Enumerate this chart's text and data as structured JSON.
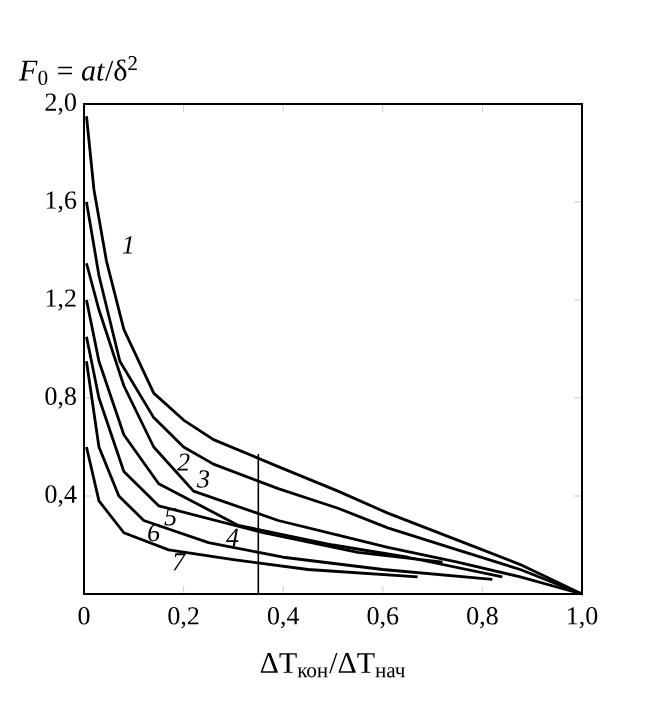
{
  "chart_data": {
    "type": "line",
    "xlabel": "ΔT$_{кон}$/ΔT$_{нач}$",
    "ylabel": "*F*$_{0}$ = *at*/δ$^{2}$",
    "xlim": [
      0,
      1.0
    ],
    "ylim": [
      0,
      2.0
    ],
    "xticks": [
      0,
      {
        "value": 0.2,
        "label": "0,2"
      },
      {
        "value": 0.4,
        "label": "0,4"
      },
      {
        "value": 0.6,
        "label": "0,6"
      },
      {
        "value": 0.8,
        "label": "0,8"
      },
      {
        "value": 1.0,
        "label": "1,0"
      }
    ],
    "yticks": [
      {
        "value": 0.4,
        "label": "0,4"
      },
      {
        "value": 0.8,
        "label": "0,8"
      },
      {
        "value": 1.2,
        "label": "1,2"
      },
      {
        "value": 1.6,
        "label": "1,6"
      },
      {
        "value": 2.0,
        "label": "2,0"
      }
    ],
    "grid": false,
    "marker": "none",
    "line_style": "solid",
    "ref_lines": [
      {
        "axis": "x",
        "value": 0.35,
        "color": "#000000"
      }
    ],
    "series": [
      {
        "name": "1",
        "color": "#000000",
        "x": [
          0.005,
          0.02,
          0.045,
          0.08,
          0.14,
          0.2,
          0.26,
          0.39,
          0.51,
          0.61,
          0.75,
          0.876,
          1.0
        ],
        "values": [
          1.95,
          1.65,
          1.36,
          1.08,
          0.82,
          0.71,
          0.63,
          0.52,
          0.42,
          0.33,
          0.22,
          0.12,
          0
        ]
      },
      {
        "name": "2",
        "color": "#000000",
        "x": [
          0.005,
          0.03,
          0.072,
          0.14,
          0.2,
          0.26,
          0.39,
          0.51,
          0.61,
          0.75,
          0.876,
          1.0
        ],
        "values": [
          1.6,
          1.3,
          0.95,
          0.72,
          0.6,
          0.53,
          0.43,
          0.35,
          0.27,
          0.18,
          0.1,
          0
        ]
      },
      {
        "name": "3",
        "color": "#000000",
        "x": [
          0.005,
          0.03,
          0.08,
          0.14,
          0.22,
          0.39,
          0.51,
          0.61,
          0.75,
          0.876,
          1.0
        ],
        "values": [
          1.35,
          1.16,
          0.85,
          0.6,
          0.42,
          0.3,
          0.24,
          0.19,
          0.13,
          0.07,
          0
        ]
      },
      {
        "name": "4",
        "color": "#000000",
        "x": [
          0.005,
          0.03,
          0.08,
          0.15,
          0.31,
          0.5,
          0.65,
          0.84
        ],
        "values": [
          1.2,
          0.95,
          0.65,
          0.45,
          0.28,
          0.2,
          0.15,
          0.07
        ]
      },
      {
        "name": "5",
        "color": "#000000",
        "x": [
          0.005,
          0.03,
          0.08,
          0.15,
          0.36,
          0.55,
          0.72
        ],
        "values": [
          1.05,
          0.8,
          0.5,
          0.36,
          0.25,
          0.17,
          0.13
        ]
      },
      {
        "name": "6",
        "color": "#000000",
        "x": [
          0.005,
          0.03,
          0.07,
          0.12,
          0.25,
          0.4,
          0.6,
          0.82
        ],
        "values": [
          0.95,
          0.6,
          0.4,
          0.3,
          0.21,
          0.15,
          0.1,
          0.06
        ]
      },
      {
        "name": "7",
        "color": "#000000",
        "x": [
          0.005,
          0.03,
          0.08,
          0.17,
          0.3,
          0.45,
          0.67
        ],
        "values": [
          0.6,
          0.38,
          0.25,
          0.18,
          0.14,
          0.1,
          0.07
        ]
      }
    ]
  }
}
